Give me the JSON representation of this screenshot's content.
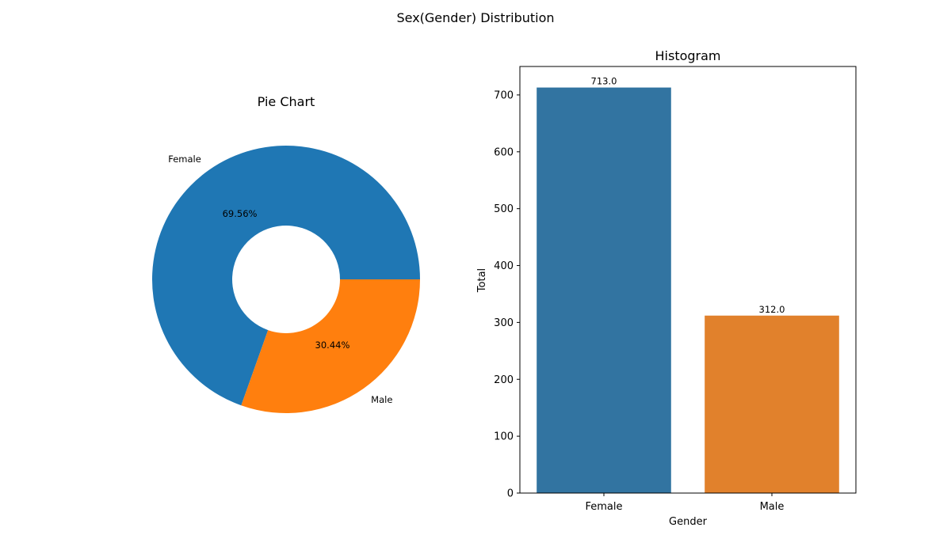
{
  "figure": {
    "title": "Sex(Gender) Distribution"
  },
  "colors": {
    "female": "#1f77b4",
    "male": "#ff7f0e",
    "female_bar": "#3274a1",
    "male_bar": "#e1812c"
  },
  "chart_data": [
    {
      "type": "pie",
      "title": "Pie Chart",
      "donut": true,
      "labels": [
        "Female",
        "Male"
      ],
      "values": [
        713,
        312
      ],
      "percent_labels": [
        "69.56%",
        "30.44%"
      ],
      "colors": [
        "#1f77b4",
        "#ff7f0e"
      ]
    },
    {
      "type": "bar",
      "title": "Histogram",
      "categories": [
        "Female",
        "Male"
      ],
      "values": [
        713,
        312
      ],
      "value_labels": [
        "713.0",
        "312.0"
      ],
      "xlabel": "Gender",
      "ylabel": "Total",
      "ylim": [
        0,
        750
      ],
      "yticks": [
        0,
        100,
        200,
        300,
        400,
        500,
        600,
        700
      ],
      "grid": false,
      "colors": [
        "#3274a1",
        "#e1812c"
      ]
    }
  ]
}
